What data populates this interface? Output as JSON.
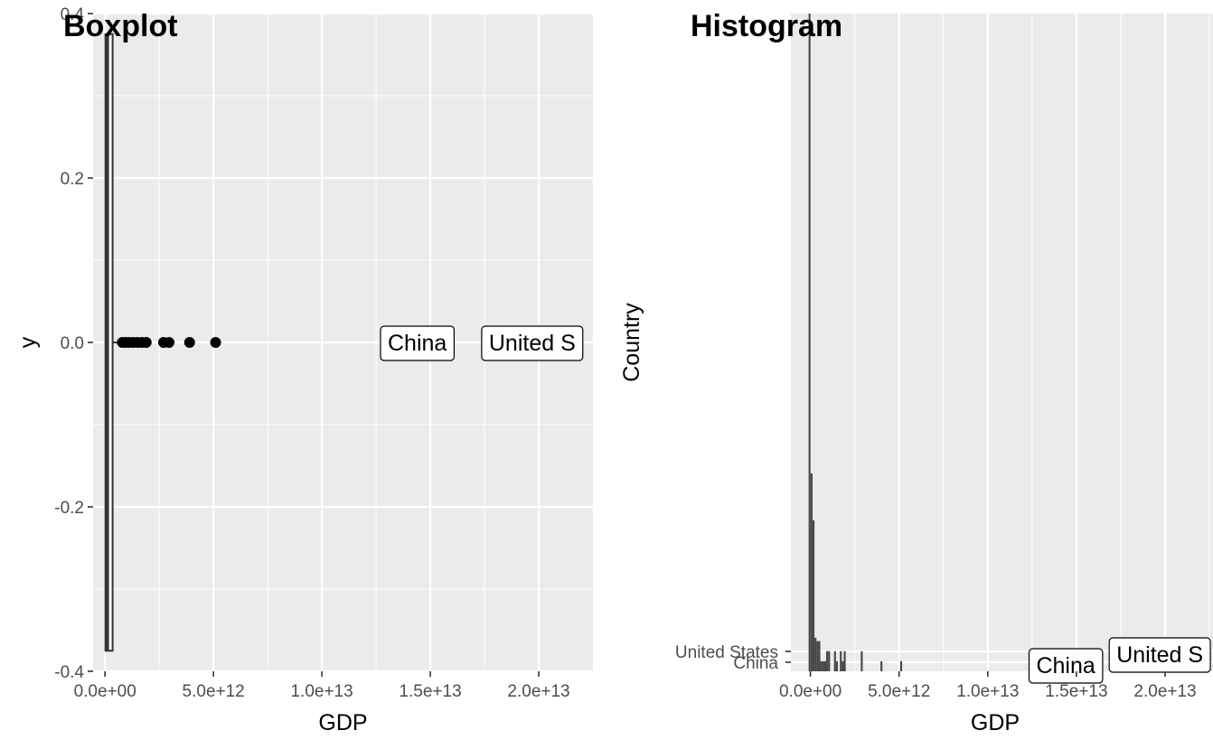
{
  "chart_data": [
    {
      "type": "boxplot",
      "title": "Boxplot",
      "xlabel": "GDP",
      "ylabel": "y",
      "xlim": [
        -550000000000.0,
        22500000000000.0
      ],
      "ylim": [
        -0.4,
        0.4
      ],
      "x_ticks": [
        0,
        5000000000000.0,
        10000000000000.0,
        15000000000000.0,
        20000000000000.0
      ],
      "x_tick_labels": [
        "0.0e+00",
        "5.0e+12",
        "1.0e+13",
        "1.5e+13",
        "2.0e+13"
      ],
      "y_ticks": [
        -0.4,
        -0.2,
        0.0,
        0.2,
        0.4
      ],
      "y_tick_labels": [
        "-0.4",
        "-0.2",
        "0.0",
        "0.2",
        "0.4"
      ],
      "box": {
        "min": 0,
        "q1": 20000000000.0,
        "median": 120000000000.0,
        "q3": 350000000000.0,
        "max": 700000000000.0,
        "ymin": -0.375,
        "ymax": 0.375
      },
      "outliers": [
        800000000000.0,
        950000000000.0,
        1100000000000.0,
        1300000000000.0,
        1500000000000.0,
        1700000000000.0,
        1900000000000.0,
        2700000000000.0,
        2950000000000.0,
        3900000000000.0,
        5100000000000.0
      ],
      "annotations": [
        {
          "label": "China",
          "x": 14400000000000.0,
          "y": 0
        },
        {
          "label": "United S",
          "x": 19700000000000.0,
          "y": 0
        }
      ],
      "grid": true
    },
    {
      "type": "bar",
      "title": "Histogram",
      "xlabel": "GDP",
      "ylabel": "Country",
      "xlim": [
        -1100000000000.0,
        22700000000000.0
      ],
      "x_ticks": [
        0,
        5000000000000.0,
        10000000000000.0,
        15000000000000.0,
        20000000000000.0
      ],
      "x_tick_labels": [
        "0.0e+00",
        "5.0e+12",
        "1.0e+13",
        "1.5e+13",
        "2.0e+13"
      ],
      "y_tick_labels": [
        "China",
        "United States"
      ],
      "bin_width": 110000000000.0,
      "bins": [
        {
          "x": -100000000000.0,
          "count": 196
        },
        {
          "x": 10000000000.0,
          "count": 59
        },
        {
          "x": 120000000000.0,
          "count": 45
        },
        {
          "x": 230000000000.0,
          "count": 10
        },
        {
          "x": 340000000000.0,
          "count": 9
        },
        {
          "x": 450000000000.0,
          "count": 9
        },
        {
          "x": 560000000000.0,
          "count": 3
        },
        {
          "x": 670000000000.0,
          "count": 3
        },
        {
          "x": 780000000000.0,
          "count": 3
        },
        {
          "x": 890000000000.0,
          "count": 6
        },
        {
          "x": 1000000000000.0,
          "count": 6
        },
        {
          "x": 1330000000000.0,
          "count": 6
        },
        {
          "x": 1440000000000.0,
          "count": 3
        },
        {
          "x": 1660000000000.0,
          "count": 6
        },
        {
          "x": 1770000000000.0,
          "count": 3
        },
        {
          "x": 1880000000000.0,
          "count": 6
        },
        {
          "x": 2840000000000.0,
          "count": 6
        },
        {
          "x": 3950000000000.0,
          "count": 3
        },
        {
          "x": 5060000000000.0,
          "count": 3
        }
      ],
      "annotations": [
        {
          "label": "China",
          "x": 14400000000000.0
        },
        {
          "label": "United S",
          "x": 19700000000000.0
        }
      ],
      "grid": true
    }
  ]
}
